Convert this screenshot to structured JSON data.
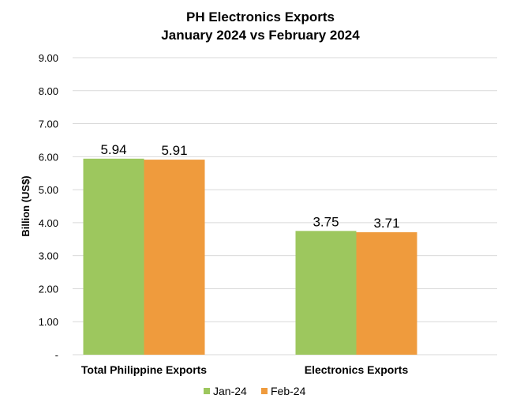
{
  "chart_data": {
    "type": "bar",
    "title": "PH Electronics Exports",
    "subtitle": "January 2024 vs February 2024",
    "xlabel": "",
    "ylabel": "Billion (US$)",
    "ylim": [
      0,
      9
    ],
    "yticks": [
      "-",
      "1.00",
      "2.00",
      "3.00",
      "4.00",
      "5.00",
      "6.00",
      "7.00",
      "8.00",
      "9.00"
    ],
    "grid": true,
    "legend_position": "bottom",
    "categories": [
      "Total Philippine Exports",
      "Electronics Exports"
    ],
    "series": [
      {
        "name": "Jan-24",
        "values": [
          5.94,
          3.75
        ],
        "labels": [
          "5.94",
          "3.75"
        ],
        "color": "#9dc75e"
      },
      {
        "name": "Feb-24",
        "values": [
          5.91,
          3.71
        ],
        "labels": [
          "5.91",
          "3.71"
        ],
        "color": "#ef9b3d"
      }
    ]
  }
}
